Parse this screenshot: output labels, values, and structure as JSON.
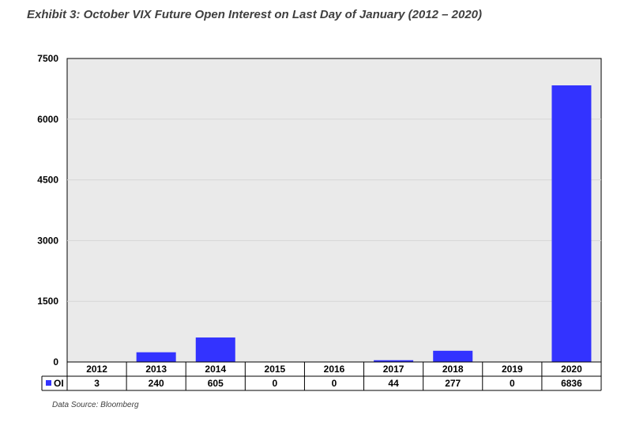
{
  "title": "Exhibit 3: October VIX Future Open Interest on Last Day of January (2012 – 2020)",
  "source": "Data Source:  Bloomberg",
  "colors": {
    "bar": "#3333ff",
    "plot_bg": "#eaeaea",
    "grid": "#d6d6d6"
  },
  "chart_data": {
    "type": "bar",
    "categories": [
      "2012",
      "2013",
      "2014",
      "2015",
      "2016",
      "2017",
      "2018",
      "2019",
      "2020"
    ],
    "series": [
      {
        "name": "OI",
        "values": [
          3,
          240,
          605,
          0,
          0,
          44,
          277,
          0,
          6836
        ]
      }
    ],
    "ylim": [
      0,
      7500
    ],
    "yticks": [
      0,
      1500,
      3000,
      4500,
      6000,
      7500
    ],
    "grid": true,
    "legend": "data-table-left"
  }
}
